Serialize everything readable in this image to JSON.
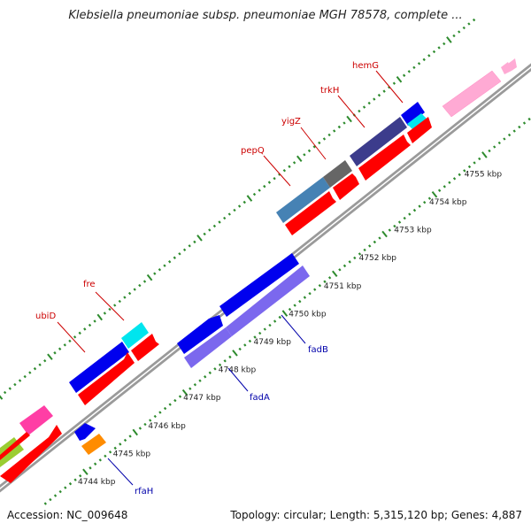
{
  "title": "Klebsiella pneumoniae subsp. pneumoniae MGH 78578, complete ...",
  "accession": "Accession: NC_009648",
  "summary": "Topology: circular; Length: 5,315,120 bp; Genes: 4,887",
  "colors": {
    "red_gene": "#ff0000",
    "blue_gene": "#0000ee",
    "slate_gene": "#4682b4",
    "navy_gene": "#3c3c8c",
    "gray_gene": "#666666",
    "cyan_gene": "#00e5ee",
    "lavender_gene": "#7b68ee",
    "orange_gene": "#ff8c00",
    "pink_gene": "#ff69b4",
    "light_pink_gene": "#ff9ccc",
    "lime_gene": "#9acd32",
    "tick_green": "#2e8b2e"
  },
  "kbp_labels": [
    {
      "text": "4744 kbp",
      "pos": 4744
    },
    {
      "text": "4745 kbp",
      "pos": 4745
    },
    {
      "text": "4746 kbp",
      "pos": 4746
    },
    {
      "text": "4747 kbp",
      "pos": 4747
    },
    {
      "text": "4748 kbp",
      "pos": 4748
    },
    {
      "text": "4749 kbp",
      "pos": 4749
    },
    {
      "text": "4750 kbp",
      "pos": 4750
    },
    {
      "text": "4751 kbp",
      "pos": 4751
    },
    {
      "text": "4752 kbp",
      "pos": 4752
    },
    {
      "text": "4753 kbp",
      "pos": 4753
    },
    {
      "text": "4754 kbp",
      "pos": 4754
    },
    {
      "text": "4755 kbp",
      "pos": 4755
    }
  ],
  "gene_labels_forward": [
    {
      "name": "ubiD"
    },
    {
      "name": "fre"
    },
    {
      "name": "pepQ"
    },
    {
      "name": "yigZ"
    },
    {
      "name": "trkH"
    },
    {
      "name": "hemG"
    }
  ],
  "gene_labels_reverse": [
    {
      "name": "rfaH"
    },
    {
      "name": "fadA"
    },
    {
      "name": "fadB"
    }
  ]
}
